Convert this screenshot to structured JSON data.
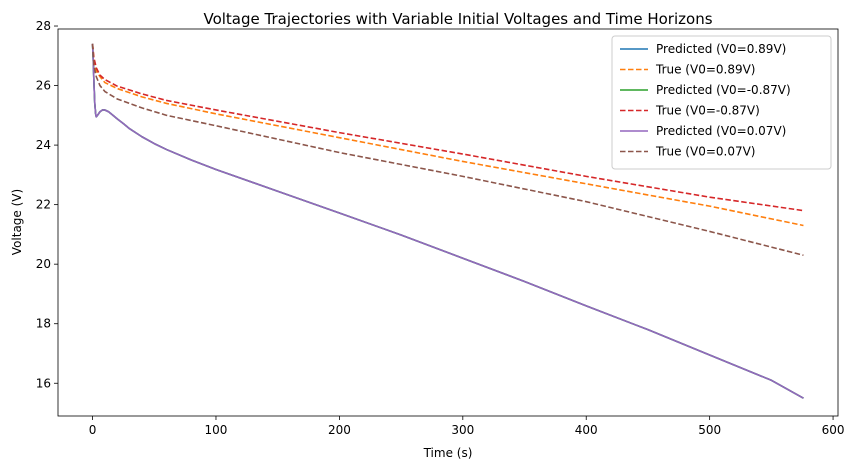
{
  "chart_data": {
    "type": "line",
    "title": "Voltage Trajectories with Variable Initial Voltages and Time Horizons",
    "xlabel": "Time (s)",
    "ylabel": "Voltage (V)",
    "xlim": [
      -28,
      604
    ],
    "ylim": [
      14.9,
      27.9
    ],
    "xticks": [
      0,
      100,
      200,
      300,
      400,
      500,
      600
    ],
    "yticks": [
      16,
      18,
      20,
      22,
      24,
      26,
      28
    ],
    "grid": false,
    "legend_position": "top-right",
    "series": [
      {
        "name": "Predicted (V0=0.89V)",
        "color": "#1f77b4",
        "style": "solid",
        "points": [
          [
            0,
            27.4
          ],
          [
            0.6,
            26.8
          ],
          [
            1.2,
            26.0
          ],
          [
            1.8,
            25.4
          ],
          [
            2.5,
            25.05
          ],
          [
            3,
            24.95
          ],
          [
            4,
            25.0
          ],
          [
            6,
            25.12
          ],
          [
            8,
            25.18
          ],
          [
            10,
            25.18
          ],
          [
            13,
            25.12
          ],
          [
            16,
            25.02
          ],
          [
            20,
            24.88
          ],
          [
            25,
            24.72
          ],
          [
            30,
            24.55
          ],
          [
            40,
            24.28
          ],
          [
            50,
            24.05
          ],
          [
            60,
            23.85
          ],
          [
            80,
            23.5
          ],
          [
            100,
            23.18
          ],
          [
            150,
            22.45
          ],
          [
            200,
            21.72
          ],
          [
            250,
            20.98
          ],
          [
            300,
            20.2
          ],
          [
            350,
            19.42
          ],
          [
            400,
            18.6
          ],
          [
            450,
            17.8
          ],
          [
            500,
            16.95
          ],
          [
            550,
            16.1
          ],
          [
            576,
            15.5
          ]
        ]
      },
      {
        "name": "True (V0=0.89V)",
        "color": "#ff7f0e",
        "style": "dashed",
        "points": [
          [
            0,
            27.4
          ],
          [
            1,
            26.9
          ],
          [
            3,
            26.5
          ],
          [
            6,
            26.3
          ],
          [
            10,
            26.1
          ],
          [
            20,
            25.9
          ],
          [
            40,
            25.62
          ],
          [
            60,
            25.4
          ],
          [
            100,
            25.05
          ],
          [
            150,
            24.65
          ],
          [
            200,
            24.25
          ],
          [
            300,
            23.45
          ],
          [
            400,
            22.7
          ],
          [
            500,
            21.95
          ],
          [
            576,
            21.3
          ]
        ]
      },
      {
        "name": "Predicted (V0=-0.87V)",
        "color": "#2ca02c",
        "style": "solid",
        "points": [
          [
            0,
            27.4
          ],
          [
            0.6,
            26.8
          ],
          [
            1.2,
            26.0
          ],
          [
            1.8,
            25.4
          ],
          [
            2.5,
            25.05
          ],
          [
            3,
            24.95
          ],
          [
            4,
            25.0
          ],
          [
            6,
            25.12
          ],
          [
            8,
            25.18
          ],
          [
            10,
            25.18
          ],
          [
            13,
            25.12
          ],
          [
            16,
            25.02
          ],
          [
            20,
            24.88
          ],
          [
            25,
            24.72
          ],
          [
            30,
            24.55
          ],
          [
            40,
            24.28
          ],
          [
            50,
            24.05
          ],
          [
            60,
            23.85
          ],
          [
            80,
            23.5
          ],
          [
            100,
            23.18
          ],
          [
            150,
            22.45
          ],
          [
            200,
            21.72
          ],
          [
            250,
            20.98
          ],
          [
            300,
            20.2
          ],
          [
            350,
            19.42
          ],
          [
            400,
            18.6
          ],
          [
            450,
            17.8
          ],
          [
            500,
            16.95
          ],
          [
            550,
            16.1
          ],
          [
            576,
            15.5
          ]
        ]
      },
      {
        "name": "True (V0=-0.87V)",
        "color": "#d62728",
        "style": "dashed",
        "points": [
          [
            0,
            27.4
          ],
          [
            1,
            26.95
          ],
          [
            3,
            26.6
          ],
          [
            6,
            26.35
          ],
          [
            10,
            26.2
          ],
          [
            20,
            25.98
          ],
          [
            40,
            25.72
          ],
          [
            60,
            25.5
          ],
          [
            100,
            25.18
          ],
          [
            150,
            24.8
          ],
          [
            200,
            24.42
          ],
          [
            300,
            23.7
          ],
          [
            400,
            22.95
          ],
          [
            500,
            22.25
          ],
          [
            576,
            21.8
          ]
        ]
      },
      {
        "name": "Predicted (V0=0.07V)",
        "color": "#9467bd",
        "style": "solid",
        "points": [
          [
            0,
            27.4
          ],
          [
            0.6,
            26.8
          ],
          [
            1.2,
            26.0
          ],
          [
            1.8,
            25.4
          ],
          [
            2.5,
            25.05
          ],
          [
            3,
            24.95
          ],
          [
            4,
            25.0
          ],
          [
            6,
            25.12
          ],
          [
            8,
            25.18
          ],
          [
            10,
            25.18
          ],
          [
            13,
            25.12
          ],
          [
            16,
            25.02
          ],
          [
            20,
            24.88
          ],
          [
            25,
            24.72
          ],
          [
            30,
            24.55
          ],
          [
            40,
            24.28
          ],
          [
            50,
            24.05
          ],
          [
            60,
            23.85
          ],
          [
            80,
            23.5
          ],
          [
            100,
            23.18
          ],
          [
            150,
            22.45
          ],
          [
            200,
            21.72
          ],
          [
            250,
            20.98
          ],
          [
            300,
            20.2
          ],
          [
            350,
            19.42
          ],
          [
            400,
            18.6
          ],
          [
            450,
            17.8
          ],
          [
            500,
            16.95
          ],
          [
            550,
            16.1
          ],
          [
            576,
            15.5
          ]
        ]
      },
      {
        "name": "True (V0=0.07V)",
        "color": "#8c564b",
        "style": "dashed",
        "points": [
          [
            0,
            27.4
          ],
          [
            1,
            26.7
          ],
          [
            3,
            26.3
          ],
          [
            6,
            26.0
          ],
          [
            10,
            25.8
          ],
          [
            20,
            25.55
          ],
          [
            40,
            25.25
          ],
          [
            60,
            25.0
          ],
          [
            100,
            24.65
          ],
          [
            150,
            24.2
          ],
          [
            200,
            23.75
          ],
          [
            300,
            22.95
          ],
          [
            400,
            22.1
          ],
          [
            500,
            21.1
          ],
          [
            576,
            20.3
          ]
        ]
      }
    ]
  }
}
